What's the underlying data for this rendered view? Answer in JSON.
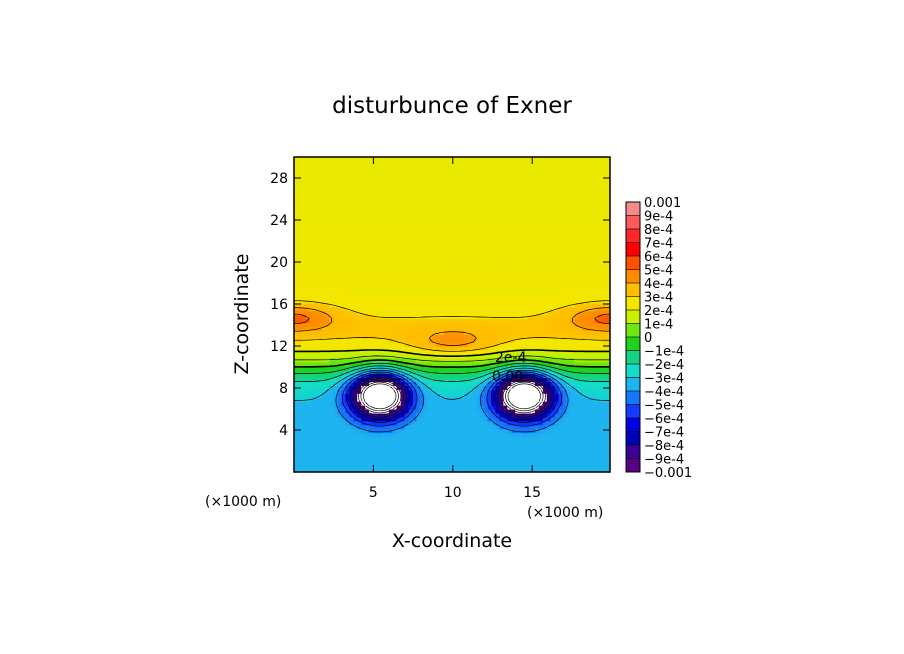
{
  "chart_data": {
    "type": "heatmap",
    "title": "disturbunce of Exner",
    "xlabel": "X-coordinate",
    "ylabel": "Z-coordinate",
    "x_unit_left": "(×1000 m)",
    "x_unit_right": "(×1000 m)",
    "xlim": [
      0,
      19.9
    ],
    "ylim": [
      0,
      30
    ],
    "x_ticks": [
      5,
      10,
      15
    ],
    "y_ticks": [
      4,
      8,
      12,
      16,
      20,
      24,
      28
    ],
    "colorbar": {
      "labels": [
        "0.001",
        "9e-4",
        "8e-4",
        "7e-4",
        "6e-4",
        "5e-4",
        "4e-4",
        "3e-4",
        "2e-4",
        "1e-4",
        "0",
        "−1e-4",
        "−2e-4",
        "−3e-4",
        "−4e-4",
        "−5e-4",
        "−6e-4",
        "−7e-4",
        "−8e-4",
        "−9e-4",
        "−0.001"
      ],
      "colors": [
        "#f58c8c",
        "#ff5a5a",
        "#ff2828",
        "#ff0000",
        "#ff5000",
        "#ff8c00",
        "#ffbe00",
        "#f5e600",
        "#c8f000",
        "#6ee614",
        "#1ed21e",
        "#14d282",
        "#14dcc8",
        "#1eb4f0",
        "#1478ff",
        "#143cff",
        "#0000e6",
        "#0000b4",
        "#3c0096",
        "#5a0082"
      ]
    },
    "contour_labels": [
      "2e-4",
      "0.00"
    ],
    "fields": {
      "base_level": 0.00022,
      "base_gradient_per_km": 2e-06,
      "upper_layer": {
        "z_center_km": 13.5,
        "z_halfwidth_km": 2.2,
        "amplitude": 9e-05
      },
      "lobes": [
        {
          "x_km": 0,
          "z_km": 14.7,
          "amplitude": 0.00023
        },
        {
          "x_km": 19.9,
          "z_km": 14.7,
          "amplitude": 0.00023
        },
        {
          "x_km": 10,
          "z_km": 12.3,
          "amplitude": 0.00017
        }
      ],
      "vortices": [
        {
          "x_km": 5.4,
          "z_km": 7.3,
          "amplitude": -0.0013,
          "radius_km": 1.6
        },
        {
          "x_km": 14.5,
          "z_km": 7.3,
          "amplitude": -0.0013,
          "radius_km": 1.6
        }
      ],
      "lower_layer_level": -0.00032
    }
  }
}
